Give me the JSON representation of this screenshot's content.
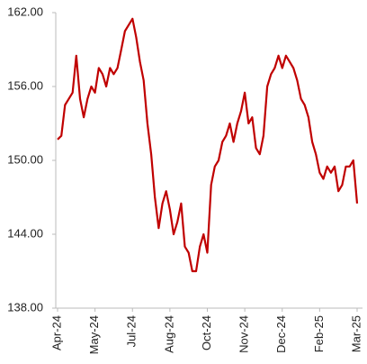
{
  "chart_data": {
    "type": "line",
    "categories": [
      "Apr-24",
      null,
      null,
      null,
      null,
      null,
      null,
      null,
      null,
      null,
      "May-24",
      null,
      null,
      null,
      null,
      null,
      null,
      null,
      null,
      null,
      "Jul-24",
      null,
      null,
      null,
      null,
      null,
      null,
      null,
      null,
      null,
      "Aug-24",
      null,
      null,
      null,
      null,
      null,
      null,
      null,
      null,
      null,
      "Oct-24",
      null,
      null,
      null,
      null,
      null,
      null,
      null,
      null,
      null,
      "Nov-24",
      null,
      null,
      null,
      null,
      null,
      null,
      null,
      null,
      null,
      "Dec-24",
      null,
      null,
      null,
      null,
      null,
      null,
      null,
      null,
      null,
      "Feb-25",
      null,
      null,
      null,
      null,
      null,
      null,
      null,
      null,
      null,
      "Mar-25"
    ],
    "values": [
      151.7,
      152,
      154.5,
      155,
      155.5,
      158.5,
      155,
      153.5,
      155,
      156,
      155.5,
      157.5,
      157,
      156,
      157.5,
      157,
      157.5,
      159,
      160.5,
      161,
      161.5,
      160,
      158,
      156.5,
      153,
      150.5,
      147,
      144.5,
      146.5,
      147.5,
      146,
      144,
      145,
      146.5,
      143,
      142.5,
      141,
      141,
      143,
      144,
      142.5,
      148,
      149.5,
      150,
      151.5,
      152,
      153,
      151.5,
      153,
      154,
      155.5,
      153,
      153.5,
      151,
      150.5,
      152,
      156,
      157,
      157.5,
      158.5,
      157.5,
      158.5,
      158,
      157.5,
      156.5,
      155,
      154.5,
      153.5,
      151.5,
      150.5,
      149,
      148.5,
      149.5,
      149,
      149.5,
      147.5,
      148,
      149.5,
      149.5,
      150,
      146.5
    ],
    "color": "#c00000",
    "ylim": [
      138,
      162
    ],
    "yticks": [
      {
        "value": 138,
        "label": "138.00"
      },
      {
        "value": 144,
        "label": "144.00"
      },
      {
        "value": 150,
        "label": "150.00"
      },
      {
        "value": 156,
        "label": "156.00"
      },
      {
        "value": 162,
        "label": "162.00"
      }
    ]
  }
}
